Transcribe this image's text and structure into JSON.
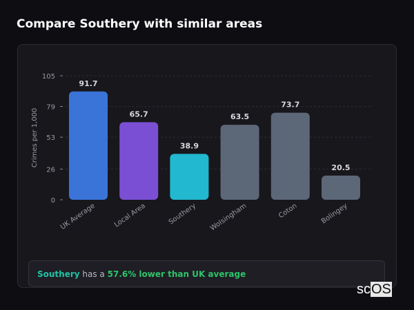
{
  "title": "Compare Southery with similar areas",
  "chart_data": {
    "type": "bar",
    "categories": [
      "UK Average",
      "Local Area",
      "Southery",
      "Wolsingham",
      "Coton",
      "Bolingey"
    ],
    "values": [
      91.7,
      65.7,
      38.9,
      63.5,
      73.7,
      20.5
    ],
    "data_labels": [
      "91.7",
      "65.7",
      "38.9",
      "63.5",
      "73.7",
      "20.5"
    ],
    "colors": [
      "#3b74d9",
      "#7b4fd4",
      "#22b8cf",
      "#5c6778",
      "#5c6778",
      "#5c6778"
    ],
    "ylabel": "Crimes per 1,000",
    "xlabel": "",
    "ylim": [
      0,
      105
    ],
    "yticks": [
      "0",
      "26",
      "53",
      "79",
      "105"
    ],
    "ytick_values": [
      0,
      26,
      53,
      79,
      105
    ],
    "grid": true
  },
  "summary": {
    "area": "Southery",
    "middle": " has a ",
    "result": "57.6% lower than UK average"
  },
  "logo": {
    "a": "sc",
    "b": "OS"
  }
}
